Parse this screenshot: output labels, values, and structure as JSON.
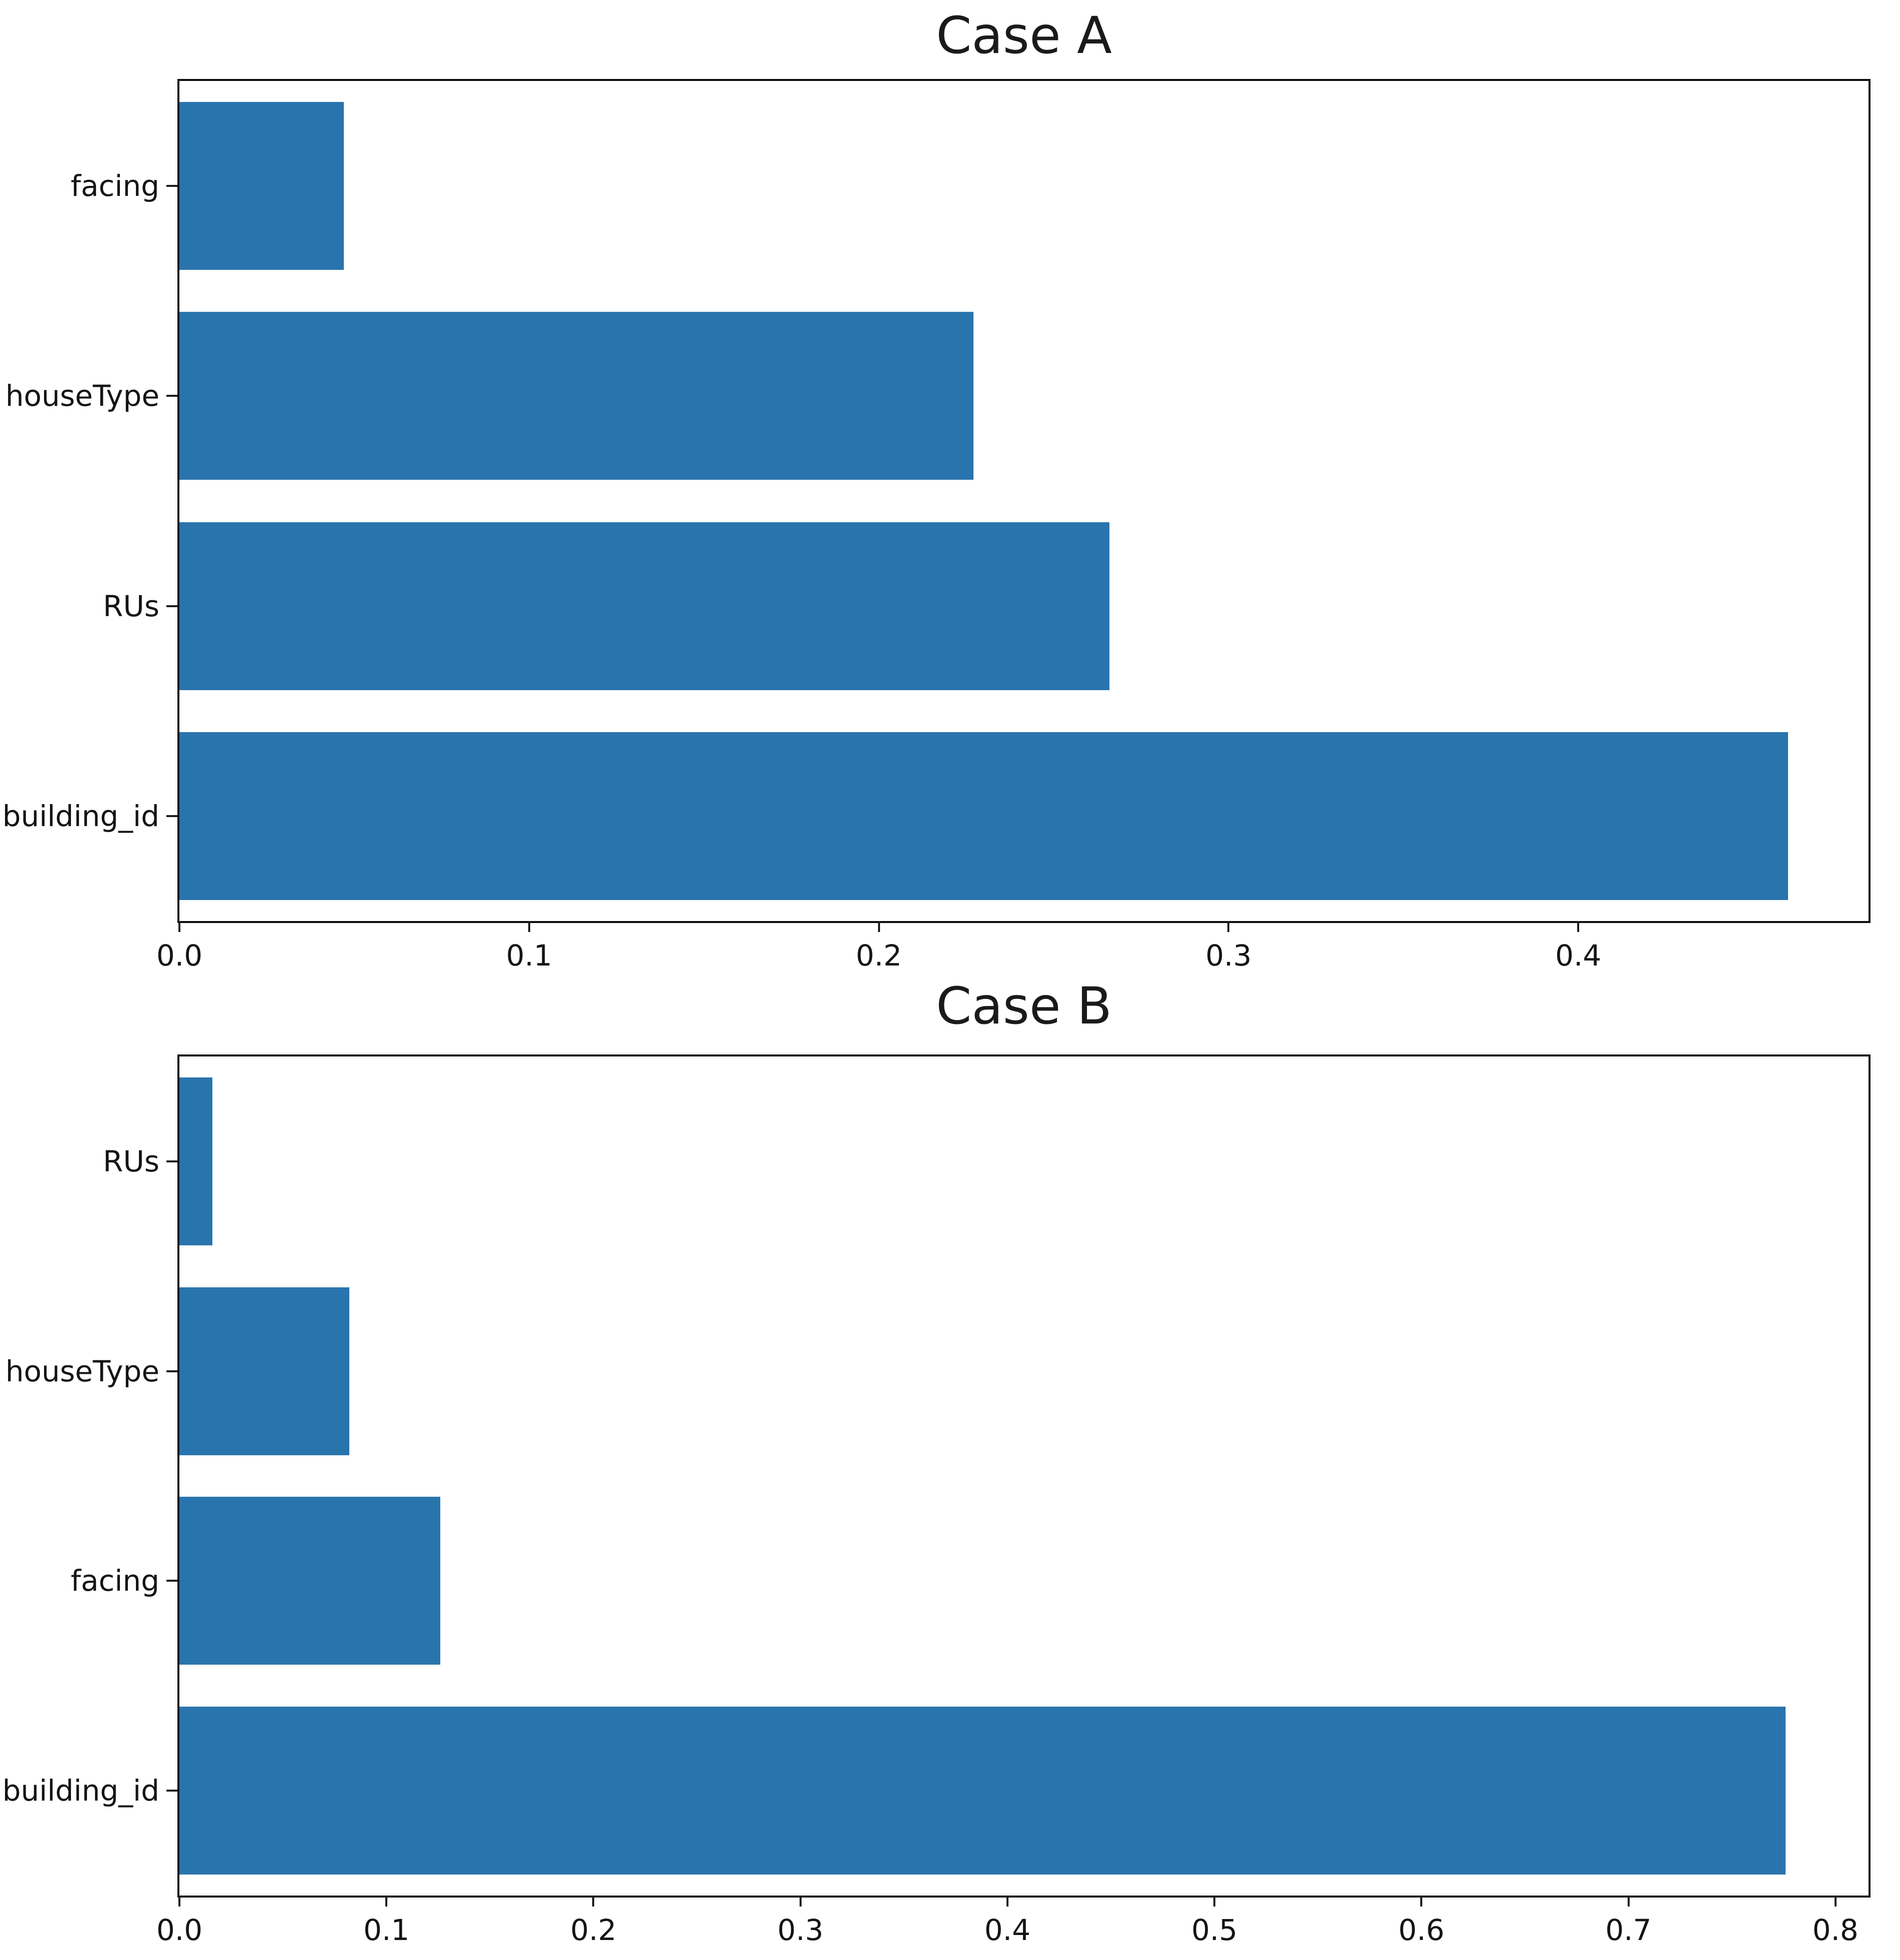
{
  "figure": {
    "background_color": "#ffffff",
    "text_color": "#141414",
    "spine_color": "#0d0d0d"
  },
  "chart_data": [
    {
      "type": "bar",
      "orientation": "horizontal",
      "title": "Case A",
      "xlabel": "",
      "ylabel": "",
      "categories": [
        "facing",
        "houseType",
        "RUs",
        "building_id"
      ],
      "values": [
        0.047,
        0.227,
        0.266,
        0.46
      ],
      "xlim": [
        0,
        0.483
      ],
      "xticks": [
        0.0,
        0.1,
        0.2,
        0.3,
        0.4
      ],
      "xtick_labels": [
        "0.0",
        "0.1",
        "0.2",
        "0.3",
        "0.4"
      ],
      "bar_color": "#2a74ae",
      "bar_height_fraction": 0.8,
      "grid": false,
      "legend": null
    },
    {
      "type": "bar",
      "orientation": "horizontal",
      "title": "Case B",
      "xlabel": "",
      "ylabel": "",
      "categories": [
        "RUs",
        "houseType",
        "facing",
        "building_id"
      ],
      "values": [
        0.016,
        0.082,
        0.126,
        0.776
      ],
      "xlim": [
        0,
        0.816
      ],
      "xticks": [
        0.0,
        0.1,
        0.2,
        0.3,
        0.4,
        0.5,
        0.6,
        0.7,
        0.8
      ],
      "xtick_labels": [
        "0.0",
        "0.1",
        "0.2",
        "0.3",
        "0.4",
        "0.5",
        "0.6",
        "0.7",
        "0.8"
      ],
      "bar_color": "#2a74ae",
      "bar_height_fraction": 0.8,
      "grid": false,
      "legend": null
    }
  ]
}
